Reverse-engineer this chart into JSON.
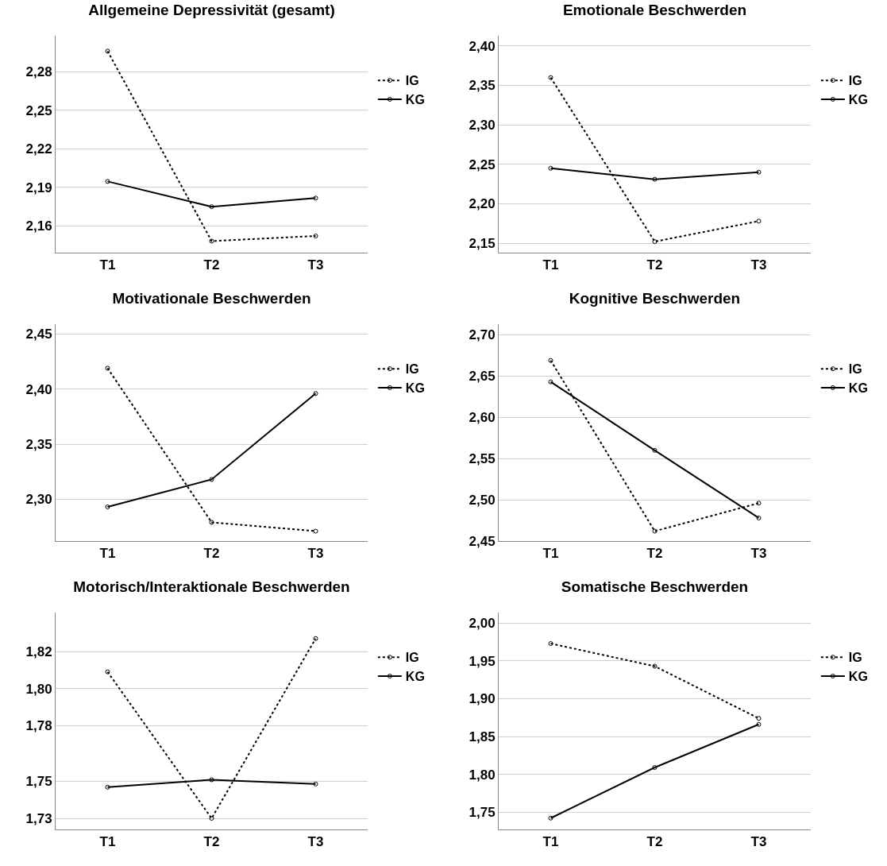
{
  "chart_data": [
    {
      "type": "line",
      "title": "Allgemeine Depressivität (gesamt)",
      "categories": [
        "T1",
        "T2",
        "T3"
      ],
      "series": [
        {
          "name": "IG",
          "color": "#000000",
          "line_style": "dotted",
          "values": [
            2.296,
            2.148,
            2.152
          ]
        },
        {
          "name": "KG",
          "color": "#000000",
          "line_style": "solid",
          "values": [
            2.1945,
            2.1748,
            2.1815
          ]
        }
      ],
      "ylim": [
        2.139,
        2.308
      ],
      "yticks": [
        {
          "value": 2.16,
          "label": "2,16"
        },
        {
          "value": 2.19,
          "label": "2,19"
        },
        {
          "value": 2.22,
          "label": "2,22"
        },
        {
          "value": 2.25,
          "label": "2,25"
        },
        {
          "value": 2.28,
          "label": "2,28"
        }
      ],
      "grid": "y",
      "legend": "right",
      "marker": "circle"
    },
    {
      "type": "line",
      "title": "Emotionale Beschwerden",
      "categories": [
        "T1",
        "T2",
        "T3"
      ],
      "series": [
        {
          "name": "IG",
          "color": "#000000",
          "line_style": "dotted",
          "values": [
            2.36,
            2.152,
            2.178
          ]
        },
        {
          "name": "KG",
          "color": "#000000",
          "line_style": "solid",
          "values": [
            2.245,
            2.231,
            2.24
          ]
        }
      ],
      "ylim": [
        2.138,
        2.413
      ],
      "yticks": [
        {
          "value": 2.15,
          "label": "2,15"
        },
        {
          "value": 2.2,
          "label": "2,20"
        },
        {
          "value": 2.25,
          "label": "2,25"
        },
        {
          "value": 2.3,
          "label": "2,30"
        },
        {
          "value": 2.35,
          "label": "2,35"
        },
        {
          "value": 2.4,
          "label": "2,40"
        }
      ],
      "grid": "y",
      "legend": "right",
      "marker": "circle"
    },
    {
      "type": "line",
      "title": "Motivationale Beschwerden",
      "categories": [
        "T1",
        "T2",
        "T3"
      ],
      "series": [
        {
          "name": "IG",
          "color": "#000000",
          "line_style": "dotted",
          "values": [
            2.419,
            2.279,
            2.271
          ]
        },
        {
          "name": "KG",
          "color": "#000000",
          "line_style": "solid",
          "values": [
            2.293,
            2.318,
            2.396
          ]
        }
      ],
      "ylim": [
        2.262,
        2.459
      ],
      "yticks": [
        {
          "value": 2.3,
          "label": "2,30"
        },
        {
          "value": 2.35,
          "label": "2,35"
        },
        {
          "value": 2.4,
          "label": "2,40"
        },
        {
          "value": 2.45,
          "label": "2,45"
        }
      ],
      "grid": "y",
      "legend": "right",
      "marker": "circle"
    },
    {
      "type": "line",
      "title": "Kognitive Beschwerden",
      "categories": [
        "T1",
        "T2",
        "T3"
      ],
      "series": [
        {
          "name": "IG",
          "color": "#000000",
          "line_style": "dotted",
          "values": [
            2.669,
            2.462,
            2.496
          ]
        },
        {
          "name": "KG",
          "color": "#000000",
          "line_style": "solid",
          "values": [
            2.643,
            2.56,
            2.478
          ]
        }
      ],
      "ylim": [
        2.45,
        2.713
      ],
      "yticks": [
        {
          "value": 2.45,
          "label": "2,45"
        },
        {
          "value": 2.5,
          "label": "2,50"
        },
        {
          "value": 2.55,
          "label": "2,55"
        },
        {
          "value": 2.6,
          "label": "2,60"
        },
        {
          "value": 2.65,
          "label": "2,65"
        },
        {
          "value": 2.7,
          "label": "2,70"
        }
      ],
      "grid": "y",
      "legend": "right",
      "marker": "circle"
    },
    {
      "type": "line",
      "title": "Motorisch/Interaktionale Beschwerden",
      "categories": [
        "T1",
        "T2",
        "T3"
      ],
      "series": [
        {
          "name": "IG",
          "color": "#000000",
          "line_style": "dotted",
          "values": [
            1.809,
            1.73,
            1.827
          ]
        },
        {
          "name": "KG",
          "color": "#000000",
          "line_style": "solid",
          "values": [
            1.7468,
            1.7508,
            1.7485
          ]
        }
      ],
      "ylim": [
        1.724,
        1.841
      ],
      "yticks": [
        {
          "value": 1.73,
          "label": "1,73"
        },
        {
          "value": 1.75,
          "label": "1,75"
        },
        {
          "value": 1.78,
          "label": "1,78"
        },
        {
          "value": 1.8,
          "label": "1,80"
        },
        {
          "value": 1.82,
          "label": "1,82"
        }
      ],
      "grid": "y",
      "legend": "right",
      "marker": "circle"
    },
    {
      "type": "line",
      "title": "Somatische Beschwerden",
      "categories": [
        "T1",
        "T2",
        "T3"
      ],
      "series": [
        {
          "name": "IG",
          "color": "#000000",
          "line_style": "dotted",
          "values": [
            1.973,
            1.943,
            1.874
          ]
        },
        {
          "name": "KG",
          "color": "#000000",
          "line_style": "solid",
          "values": [
            1.742,
            1.809,
            1.866
          ]
        }
      ],
      "ylim": [
        1.727,
        2.014
      ],
      "yticks": [
        {
          "value": 1.75,
          "label": "1,75"
        },
        {
          "value": 1.8,
          "label": "1,80"
        },
        {
          "value": 1.85,
          "label": "1,85"
        },
        {
          "value": 1.9,
          "label": "1,90"
        },
        {
          "value": 1.95,
          "label": "1,95"
        },
        {
          "value": 2.0,
          "label": "2,00"
        }
      ],
      "grid": "y",
      "legend": "right",
      "marker": "circle"
    }
  ]
}
